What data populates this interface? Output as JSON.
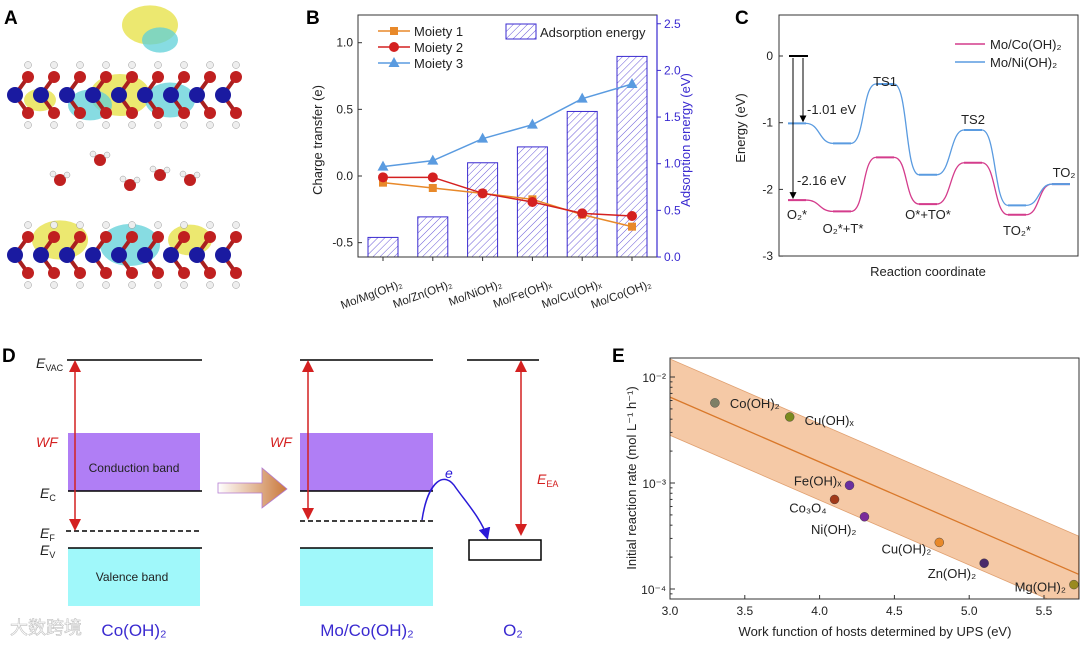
{
  "panels": {
    "a": "A",
    "b": "B",
    "c": "C",
    "d": "D",
    "e": "E"
  },
  "watermark": "大数跨境",
  "colors": {
    "moiety1": "#e8892a",
    "moiety2": "#d42020",
    "moiety3": "#5a9be0",
    "bars": "#3a2ad0",
    "co": "#d43c8c",
    "ni": "#5a9be0",
    "band": "#f5c9a6",
    "fit": "#d9782a",
    "wf": "#d42020",
    "conduction": "#b07ef5",
    "valence": "#a0f8fa",
    "electron": "#2a1ad8"
  },
  "chart_data": [
    {
      "panel": "B",
      "type": "bar+line",
      "categories": [
        "Mo/Mg(OH)₂",
        "Mo/Zn(OH)₂",
        "Mo/NiOH)₂",
        "Mo/Fe(OH)ₓ",
        "Mo/Cu(OH)ₓ",
        "Mo/Co(OH)₂"
      ],
      "bars": {
        "name": "Adsorption energy",
        "axis": "right",
        "values": [
          0.21,
          0.43,
          1.01,
          1.18,
          1.56,
          2.15
        ]
      },
      "series": [
        {
          "name": "Moiety 1",
          "marker": "square",
          "values": [
            -0.05,
            -0.09,
            -0.13,
            -0.175,
            -0.29,
            -0.38
          ]
        },
        {
          "name": "Moiety 2",
          "marker": "circle",
          "values": [
            -0.01,
            -0.01,
            -0.13,
            -0.195,
            -0.28,
            -0.3
          ]
        },
        {
          "name": "Moiety 3",
          "marker": "triangle",
          "values": [
            0.07,
            0.115,
            0.28,
            0.385,
            0.58,
            0.69
          ]
        }
      ],
      "ylabel": "Charge transfer (e)",
      "y2label": "Adsorption energy (eV)",
      "ylim": [
        -0.6,
        1.2
      ],
      "y2lim": [
        0,
        2.6
      ],
      "yticks": [
        "-0.5",
        "0.0",
        "0.5",
        "1.0"
      ],
      "y2ticks": [
        "0.0",
        "0.5",
        "1.0",
        "1.5",
        "2.0",
        "2.5"
      ],
      "legend": "top-left"
    },
    {
      "panel": "C",
      "type": "line",
      "states": [
        "O₂*",
        "O₂*+T*",
        "TS1",
        "O*+TO*",
        "TS2",
        "TO₂*",
        "TO₂"
      ],
      "initial": 0,
      "series": [
        {
          "name": "Mo/Co(OH)₂",
          "values": [
            -2.16,
            -2.33,
            -1.52,
            -2.22,
            -1.6,
            -2.38,
            -1.92
          ]
        },
        {
          "name": "Mo/Ni(OH)₂",
          "values": [
            -1.01,
            -1.31,
            -0.42,
            -1.78,
            -1.11,
            -2.24,
            -1.92
          ]
        }
      ],
      "annotations": [
        "-1.01 eV",
        "-2.16 eV"
      ],
      "ylabel": "Energy (eV)",
      "xlabel": "Reaction coordinate",
      "ylim": [
        -3,
        0.6
      ],
      "yticks": [
        "0",
        "-1",
        "-2",
        "-3"
      ],
      "legend": "top-right"
    },
    {
      "panel": "E",
      "type": "scatter",
      "points": [
        {
          "label": "Co(OH)₂",
          "x": 3.3,
          "y": 0.0057,
          "color": "#7d7f66"
        },
        {
          "label": "Cu(OH)ₓ",
          "x": 3.8,
          "y": 0.0042,
          "color": "#7a8a1e"
        },
        {
          "label": "Fe(OH)ₓ",
          "x": 4.2,
          "y": 0.00095,
          "color": "#6a2fa0"
        },
        {
          "label": "Co₃O₄",
          "x": 4.1,
          "y": 0.0007,
          "color": "#a23a1a"
        },
        {
          "label": "Ni(OH)₂",
          "x": 4.3,
          "y": 0.00048,
          "color": "#7a2a9a"
        },
        {
          "label": "Cu(OH)₂",
          "x": 4.8,
          "y": 0.000275,
          "color": "#e8892a"
        },
        {
          "label": "Zn(OH)₂",
          "x": 5.1,
          "y": 0.000175,
          "color": "#4a2a6a"
        },
        {
          "label": "Mg(OH)₂",
          "x": 5.7,
          "y": 0.00011,
          "color": "#9a8a20"
        }
      ],
      "fit": {
        "x": [
          3.0,
          5.73
        ],
        "log10y": [
          -2.19,
          -3.86
        ],
        "band_halfwidth_decades": 0.36
      },
      "xlabel": "Work function of hosts determined by UPS (eV)",
      "ylabel": "Initial reaction rate (mol L⁻¹ h⁻¹)",
      "xlim": [
        3.0,
        5.73
      ],
      "ylim_log10": [
        -4.09,
        -1.82
      ],
      "yscale": "log",
      "xticks": [
        "3.0",
        "3.5",
        "4.0",
        "4.5",
        "5.0",
        "5.5"
      ],
      "yticks": [
        "10⁻²",
        "10⁻³",
        "10⁻⁴"
      ]
    }
  ],
  "diagram_d": {
    "levels": {
      "evac": "E",
      "evac_sub": "VAC",
      "ec": "E",
      "ec_sub": "C",
      "ef": "E",
      "ef_sub": "F",
      "ev": "E",
      "ev_sub": "V"
    },
    "wf": "WF",
    "conduction_band": "Conduction band",
    "valence_band": "Valence band",
    "electron": "e",
    "eea": "E",
    "eea_sub": "EA",
    "labels": [
      "Co(OH)₂",
      "Mo/Co(OH)₂",
      "O₂"
    ]
  }
}
